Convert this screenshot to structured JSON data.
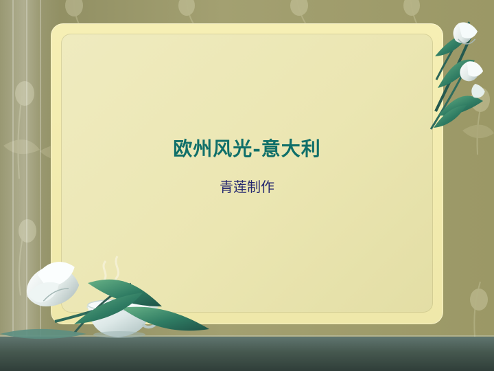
{
  "slide": {
    "title": "欧州风光-意大利",
    "subtitle": "青莲制作"
  },
  "colors": {
    "background": "#9b9866",
    "frame": "#f6efb4",
    "panel": "#ebe6b2",
    "title": "#0f6f69",
    "subtitle": "#24276f",
    "floor": "#46584f"
  },
  "icons": {
    "flowers": "tulip-flower-icon",
    "cup": "tea-cup-icon",
    "steam": "steam-icon"
  }
}
